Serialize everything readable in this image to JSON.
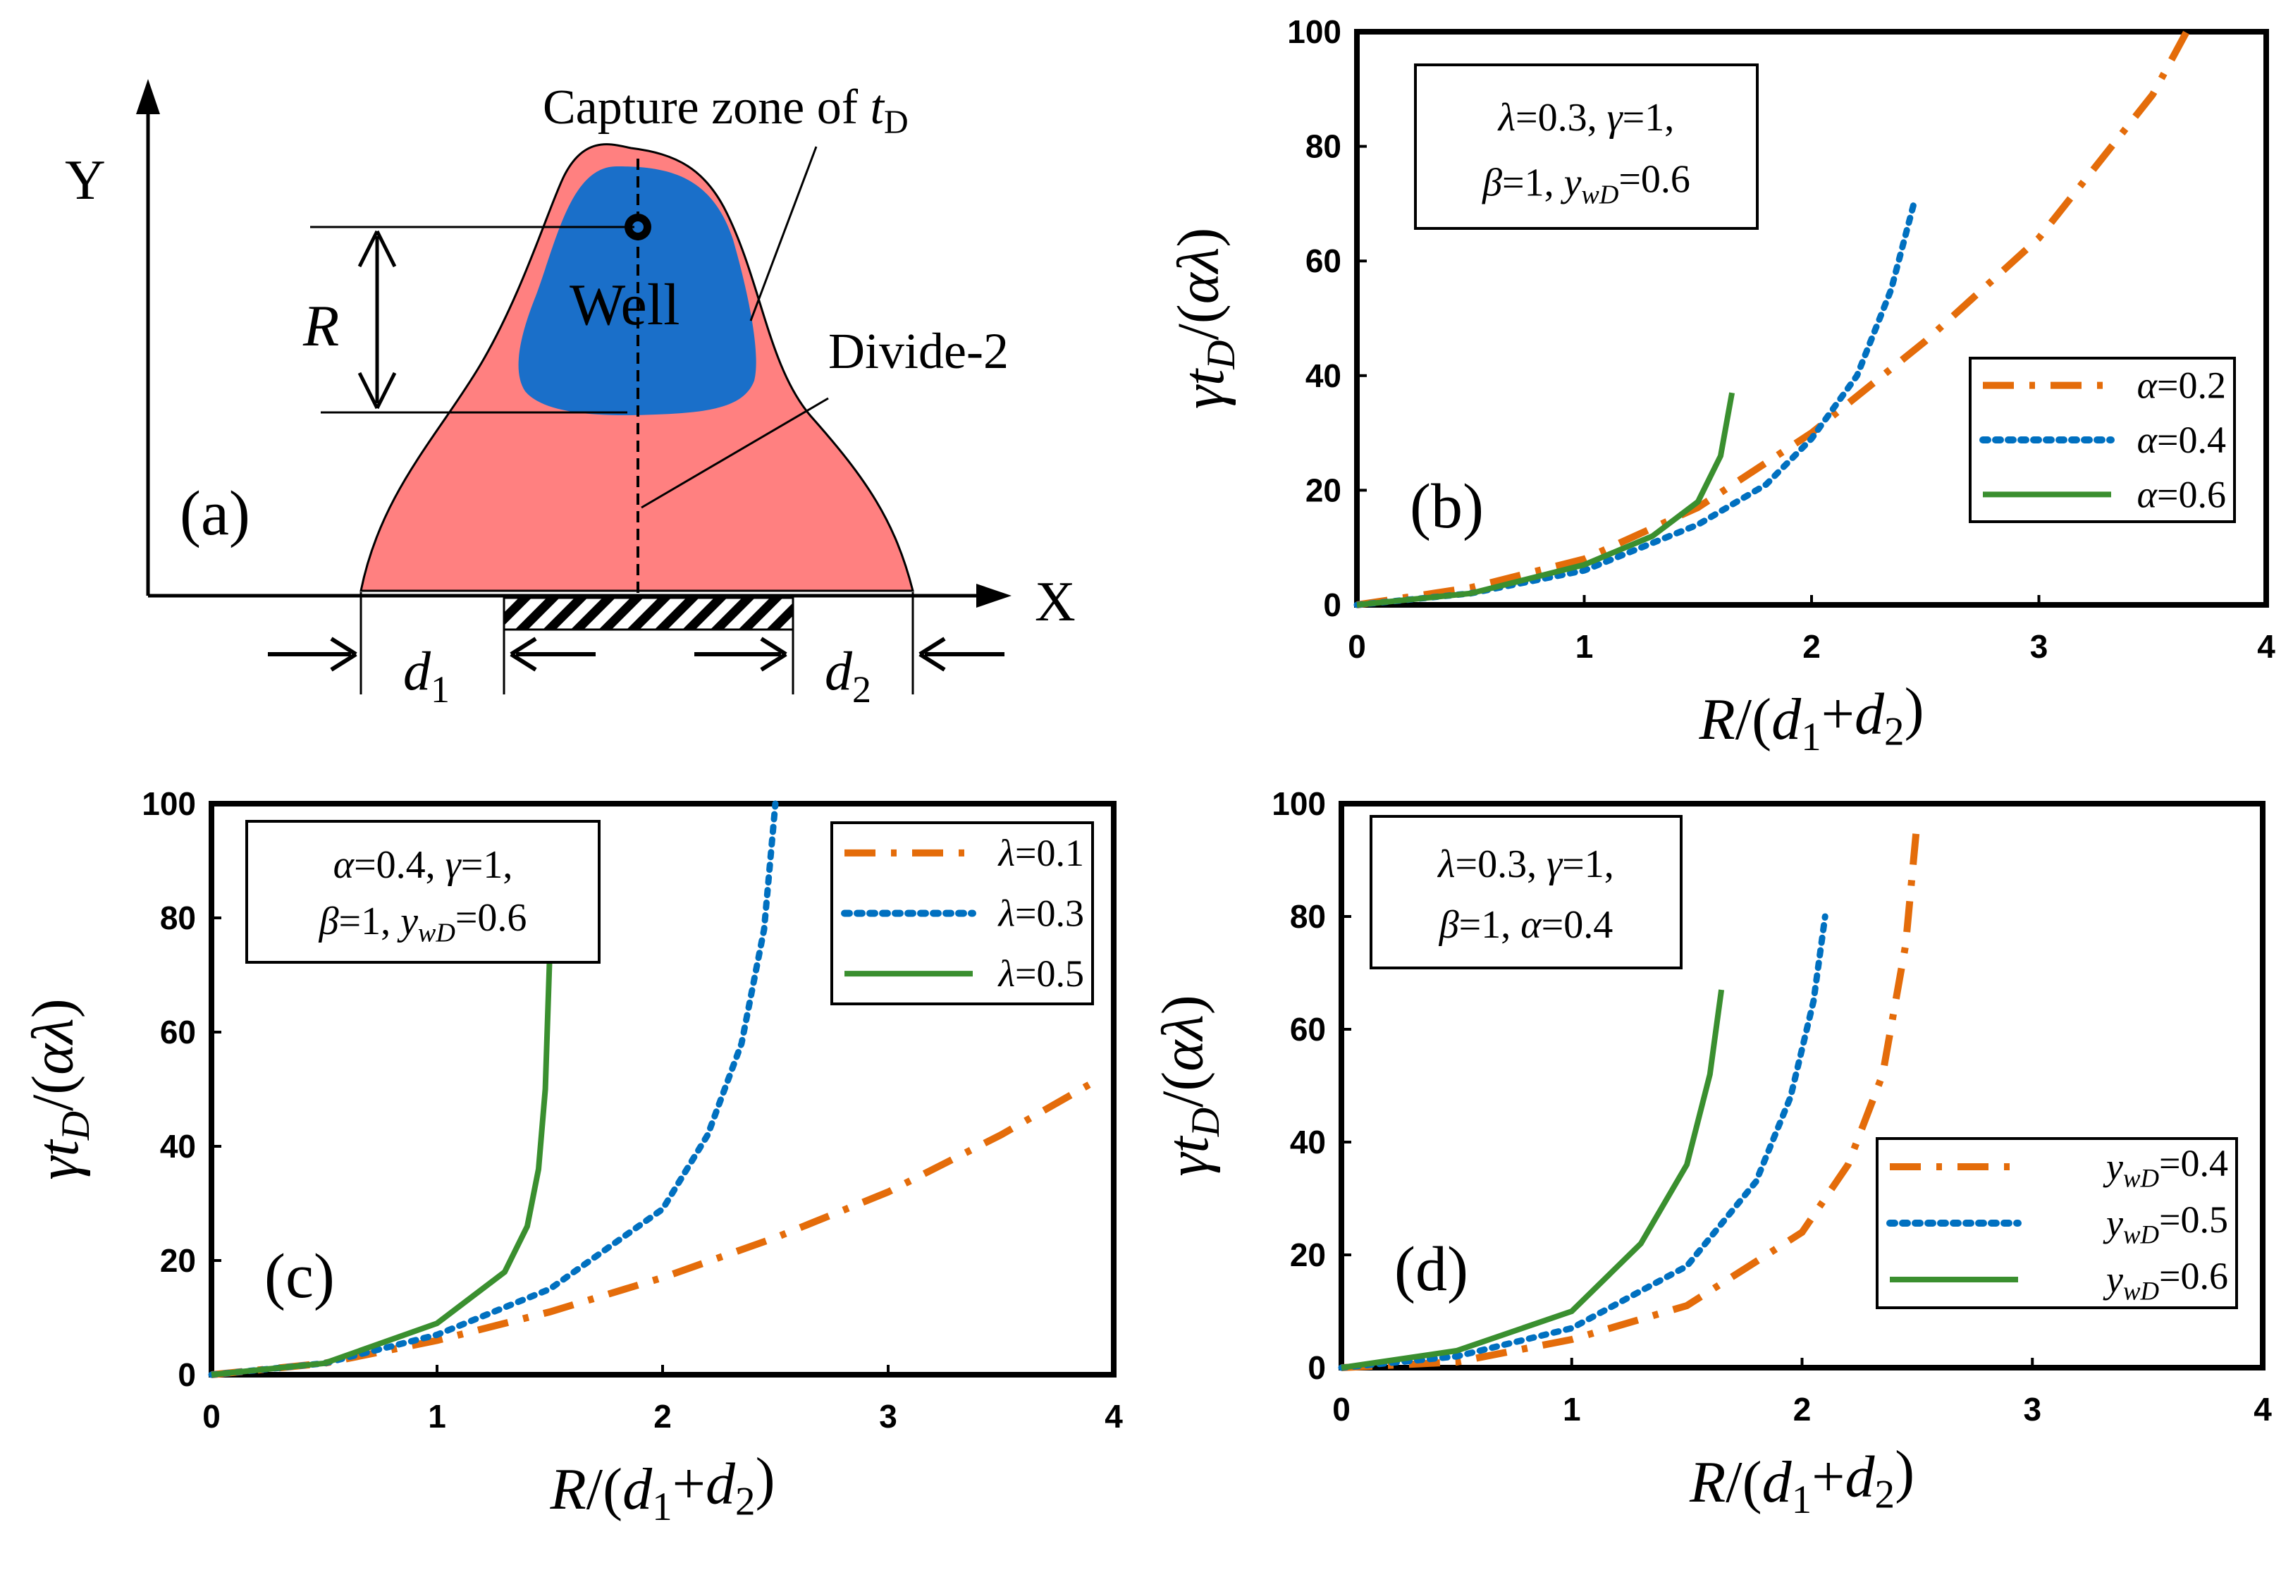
{
  "panel_a": {
    "label": "(a)",
    "axis_y": "Y",
    "axis_x": "X",
    "capture_zone_prefix": "Capture zone of ",
    "capture_zone_var": "t",
    "capture_zone_sub": "D",
    "well_label": "Well",
    "r_label": "R",
    "divide_label": "Divide-2",
    "d1_base": "d",
    "d1_sub": "1",
    "d2_base": "d",
    "d2_sub": "2",
    "colors": {
      "capture_zone": "#ff8080",
      "well_zone": "#1a6fc9"
    }
  },
  "chart_data": [
    {
      "panel": "(b)",
      "type": "line",
      "xlim": [
        0,
        4
      ],
      "ylim": [
        0,
        100
      ],
      "xticks": [
        "0",
        "1",
        "2",
        "3",
        "4"
      ],
      "yticks": [
        "0",
        "20",
        "40",
        "60",
        "80",
        "100"
      ],
      "xlabel": "R/(d1+d2)",
      "ylabel": "γtD/(αλ)",
      "grid": false,
      "legend_position": "lower-right",
      "parameter_box": {
        "line1": "λ=0.3, γ=1,",
        "line2": "β=1, ywD=0.6"
      },
      "series": [
        {
          "name": "α=0.2",
          "color": "#e46c0a",
          "style": "dashdot",
          "x": [
            0,
            0.5,
            1,
            1.5,
            2,
            2.5,
            3,
            3.5,
            3.65
          ],
          "y": [
            0,
            3,
            8,
            17,
            30,
            46,
            64,
            89,
            100
          ]
        },
        {
          "name": "α=0.4",
          "color": "#0070c0",
          "style": "dotted",
          "x": [
            0,
            0.5,
            1,
            1.5,
            1.8,
            2,
            2.2,
            2.35,
            2.45
          ],
          "y": [
            0,
            2,
            6,
            14,
            21,
            29,
            40,
            55,
            70
          ]
        },
        {
          "name": "α=0.6",
          "color": "#3a8f2f",
          "style": "solid",
          "x": [
            0,
            0.5,
            1,
            1.3,
            1.5,
            1.6,
            1.65
          ],
          "y": [
            0,
            2,
            7,
            12,
            18,
            26,
            37
          ]
        }
      ]
    },
    {
      "panel": "(c)",
      "type": "line",
      "xlim": [
        0,
        4
      ],
      "ylim": [
        0,
        100
      ],
      "xticks": [
        "0",
        "1",
        "2",
        "3",
        "4"
      ],
      "yticks": [
        "0",
        "20",
        "40",
        "60",
        "80",
        "100"
      ],
      "xlabel": "R/(d1+d2)",
      "ylabel": "γtD/(αλ)",
      "grid": false,
      "legend_position": "top-right",
      "parameter_box": {
        "line1": "α=0.4, γ=1,",
        "line2": "β=1, ywD=0.6"
      },
      "series": [
        {
          "name": "λ=0.1",
          "color": "#e46c0a",
          "style": "dashdot",
          "x": [
            0,
            0.5,
            1,
            1.5,
            2,
            2.5,
            3,
            3.5,
            3.9
          ],
          "y": [
            0,
            2,
            6,
            11,
            17,
            24,
            32,
            42,
            51
          ]
        },
        {
          "name": "λ=0.3",
          "color": "#0070c0",
          "style": "dotted",
          "x": [
            0,
            0.5,
            1,
            1.5,
            2,
            2.2,
            2.35,
            2.45,
            2.5
          ],
          "y": [
            0,
            2,
            7,
            15,
            29,
            42,
            58,
            78,
            100
          ]
        },
        {
          "name": "λ=0.5",
          "color": "#3a8f2f",
          "style": "solid",
          "x": [
            0,
            0.5,
            1,
            1.3,
            1.4,
            1.45,
            1.48,
            1.5
          ],
          "y": [
            0,
            2,
            9,
            18,
            26,
            36,
            50,
            74
          ]
        }
      ]
    },
    {
      "panel": "(d)",
      "type": "line",
      "xlim": [
        0,
        4
      ],
      "ylim": [
        0,
        100
      ],
      "xticks": [
        "0",
        "1",
        "2",
        "3",
        "4"
      ],
      "yticks": [
        "0",
        "20",
        "40",
        "60",
        "80",
        "100"
      ],
      "xlabel": "R/(d1+d2)",
      "ylabel": "γtD/(αλ)",
      "grid": false,
      "legend_position": "lower-right",
      "parameter_box": {
        "line1": "λ=0.3, γ=1,",
        "line2": "β=1, α=0.4"
      },
      "series": [
        {
          "name": "ywD=0.4",
          "color": "#e46c0a",
          "style": "dashdot",
          "x": [
            0,
            0.5,
            1,
            1.5,
            2,
            2.2,
            2.35,
            2.45,
            2.5
          ],
          "y": [
            0,
            1,
            5,
            11,
            24,
            36,
            52,
            75,
            97
          ]
        },
        {
          "name": "ywD=0.5",
          "color": "#0070c0",
          "style": "dotted",
          "x": [
            0,
            0.5,
            1,
            1.5,
            1.8,
            1.95,
            2.05,
            2.1
          ],
          "y": [
            0,
            2,
            7,
            18,
            33,
            48,
            65,
            80
          ]
        },
        {
          "name": "ywD=0.6",
          "color": "#3a8f2f",
          "style": "solid",
          "x": [
            0,
            0.5,
            1,
            1.3,
            1.5,
            1.6,
            1.65
          ],
          "y": [
            0,
            3,
            10,
            22,
            36,
            52,
            67
          ]
        }
      ]
    }
  ]
}
